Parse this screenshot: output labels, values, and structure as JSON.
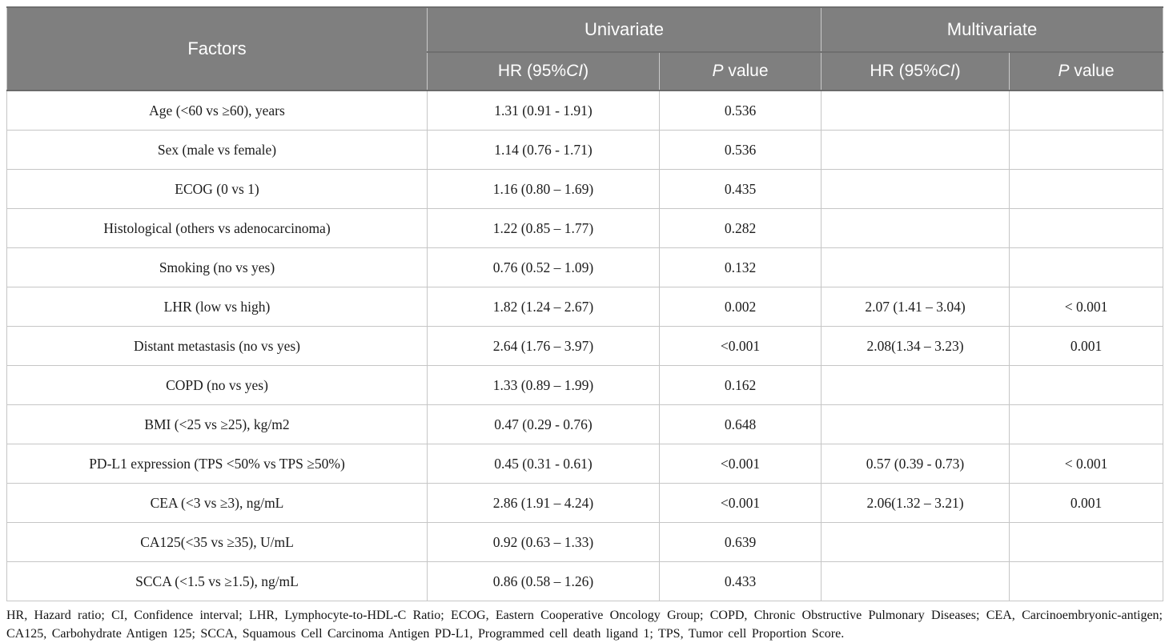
{
  "table": {
    "header": {
      "factors": "Factors",
      "univariate": "Univariate",
      "multivariate": "Multivariate",
      "hr_prefix": "HR (95%",
      "hr_italic": "CI",
      "hr_suffix": ")",
      "p_italic": "P",
      "p_rest": " value"
    },
    "columns": [
      {
        "key": "factor",
        "name": "factor-cell"
      },
      {
        "key": "uni_hr",
        "name": "univariate-hr-cell"
      },
      {
        "key": "uni_p",
        "name": "univariate-p-cell"
      },
      {
        "key": "multi_hr",
        "name": "multivariate-hr-cell"
      },
      {
        "key": "multi_p",
        "name": "multivariate-p-cell"
      }
    ],
    "rows": [
      {
        "factor": "Age (<60 vs ≥60), years",
        "uni_hr": "1.31 (0.91 - 1.91)",
        "uni_p": "0.536",
        "multi_hr": "",
        "multi_p": ""
      },
      {
        "factor": "Sex (male vs female)",
        "uni_hr": "1.14 (0.76 - 1.71)",
        "uni_p": "0.536",
        "multi_hr": "",
        "multi_p": ""
      },
      {
        "factor": "ECOG (0 vs 1)",
        "uni_hr": "1.16 (0.80 – 1.69)",
        "uni_p": "0.435",
        "multi_hr": "",
        "multi_p": ""
      },
      {
        "factor": "Histological (others vs adenocarcinoma)",
        "uni_hr": "1.22 (0.85 – 1.77)",
        "uni_p": "0.282",
        "multi_hr": "",
        "multi_p": ""
      },
      {
        "factor": "Smoking (no vs yes)",
        "uni_hr": "0.76 (0.52 – 1.09)",
        "uni_p": "0.132",
        "multi_hr": "",
        "multi_p": ""
      },
      {
        "factor": "LHR (low vs high)",
        "uni_hr": "1.82 (1.24 – 2.67)",
        "uni_p": "0.002",
        "multi_hr": "2.07 (1.41 – 3.04)",
        "multi_p": "< 0.001"
      },
      {
        "factor": "Distant metastasis (no vs yes)",
        "uni_hr": "2.64 (1.76 – 3.97)",
        "uni_p": "<0.001",
        "multi_hr": "2.08(1.34 – 3.23)",
        "multi_p": "0.001"
      },
      {
        "factor": "COPD (no vs yes)",
        "uni_hr": "1.33 (0.89 – 1.99)",
        "uni_p": "0.162",
        "multi_hr": "",
        "multi_p": ""
      },
      {
        "factor": "BMI (<25 vs ≥25), kg/m2",
        "uni_hr": "0.47 (0.29 - 0.76)",
        "uni_p": "0.648",
        "multi_hr": "",
        "multi_p": ""
      },
      {
        "factor": "PD-L1 expression (TPS <50% vs TPS ≥50%)",
        "uni_hr": "0.45 (0.31 - 0.61)",
        "uni_p": "<0.001",
        "multi_hr": "0.57 (0.39 - 0.73)",
        "multi_p": "< 0.001"
      },
      {
        "factor": "CEA (<3 vs ≥3), ng/mL",
        "uni_hr": "2.86 (1.91 – 4.24)",
        "uni_p": "<0.001",
        "multi_hr": "2.06(1.32 – 3.21)",
        "multi_p": "0.001"
      },
      {
        "factor": "CA125(<35 vs ≥35), U/mL",
        "uni_hr": "0.92 (0.63 – 1.33)",
        "uni_p": "0.639",
        "multi_hr": "",
        "multi_p": ""
      },
      {
        "factor": "SCCA (<1.5 vs ≥1.5), ng/mL",
        "uni_hr": "0.86 (0.58 – 1.26)",
        "uni_p": "0.433",
        "multi_hr": "",
        "multi_p": ""
      }
    ],
    "footnote": "HR, Hazard ratio; CI, Confidence interval; LHR, Lymphocyte-to-HDL-C Ratio; ECOG, Eastern Cooperative Oncology Group; COPD, Chronic Obstructive Pulmonary Diseases; CEA, Carcinoembryonic-antigen; CA125, Carbohydrate Antigen 125; SCCA, Squamous Cell Carcinoma Antigen PD-L1, Programmed cell death ligand 1; TPS, Tumor cell Proportion Score."
  },
  "colors": {
    "header_bg": "#7f7f7f",
    "header_text": "#ffffff",
    "border_light": "#c6c6c6",
    "body_text": "#1c1c1c"
  }
}
